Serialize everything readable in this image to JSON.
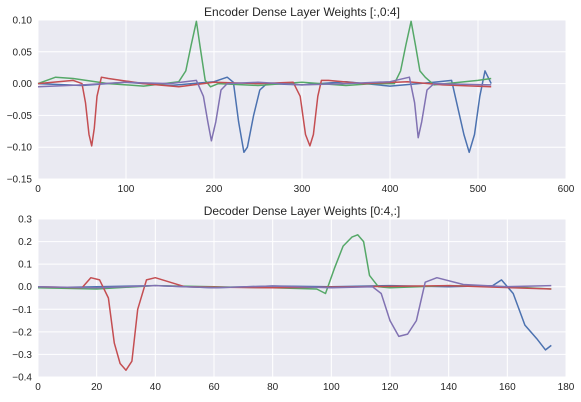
{
  "chart_data": [
    {
      "type": "line",
      "title": "Encoder Dense Layer Weights [:,0:4]",
      "xlabel": "",
      "ylabel": "",
      "xlim": [
        0,
        600
      ],
      "ylim": [
        -0.15,
        0.1
      ],
      "xticks": [
        0,
        100,
        200,
        300,
        400,
        500,
        600
      ],
      "yticks": [
        0.1,
        0.05,
        0.0,
        -0.05,
        -0.1,
        -0.15
      ],
      "xtick_labels": [
        "0",
        "100",
        "200",
        "300",
        "400",
        "500",
        "600"
      ],
      "ytick_labels": [
        "0.10",
        "0.05",
        "0.00",
        "−0.05",
        "−0.10",
        "−0.15"
      ],
      "grid": true,
      "series": [
        {
          "color": "#4c72b0",
          "x": [
            0,
            50,
            100,
            150,
            200,
            215,
            222,
            228,
            234,
            238,
            245,
            252,
            260,
            300,
            350,
            400,
            450,
            470,
            484,
            490,
            496,
            502,
            508,
            515
          ],
          "y": [
            0,
            -0.003,
            0.002,
            -0.003,
            0.003,
            0.01,
            0.002,
            -0.06,
            -0.108,
            -0.1,
            -0.05,
            -0.01,
            0,
            -0.002,
            0.003,
            -0.004,
            0.002,
            0.005,
            -0.08,
            -0.108,
            -0.08,
            -0.02,
            0.02,
            0
          ]
        },
        {
          "color": "#55a868",
          "x": [
            0,
            20,
            40,
            80,
            120,
            160,
            168,
            174,
            180,
            184,
            190,
            196,
            205,
            250,
            300,
            350,
            380,
            405,
            412,
            418,
            424,
            429,
            434,
            440,
            450,
            500,
            515
          ],
          "y": [
            0,
            0.01,
            0.008,
            0,
            -0.004,
            0.003,
            0.02,
            0.06,
            0.098,
            0.06,
            0.005,
            -0.005,
            0,
            -0.003,
            0.002,
            -0.003,
            0,
            0,
            0.02,
            0.06,
            0.098,
            0.06,
            0.02,
            0.01,
            -0.002,
            0.005,
            0.008
          ]
        },
        {
          "color": "#c44e52",
          "x": [
            0,
            40,
            50,
            54,
            58,
            61,
            64,
            67,
            72,
            80,
            120,
            160,
            200,
            250,
            290,
            298,
            304,
            309,
            313,
            318,
            322,
            330,
            370,
            420,
            460,
            515
          ],
          "y": [
            0,
            0.005,
            0,
            -0.03,
            -0.08,
            -0.098,
            -0.07,
            -0.02,
            0.01,
            0.008,
            0,
            -0.005,
            0.002,
            0,
            0.002,
            -0.02,
            -0.08,
            -0.098,
            -0.08,
            -0.02,
            0.005,
            0.005,
            0,
            0.003,
            -0.002,
            -0.005
          ]
        },
        {
          "color": "#8172b2",
          "x": [
            0,
            50,
            100,
            150,
            180,
            188,
            193,
            197,
            202,
            208,
            215,
            250,
            300,
            350,
            400,
            422,
            428,
            432,
            436,
            442,
            450,
            515
          ],
          "y": [
            -0.005,
            -0.002,
            0.002,
            0,
            0.005,
            -0.02,
            -0.06,
            -0.09,
            -0.06,
            -0.01,
            0,
            0.002,
            -0.002,
            0,
            0.003,
            0.01,
            -0.03,
            -0.085,
            -0.06,
            -0.01,
            0,
            -0.002
          ]
        }
      ]
    },
    {
      "type": "line",
      "title": "Decoder Dense Layer Weights [0:4,:]",
      "xlabel": "",
      "ylabel": "",
      "xlim": [
        0,
        180
      ],
      "ylim": [
        -0.4,
        0.3
      ],
      "xticks": [
        0,
        20,
        40,
        60,
        80,
        100,
        120,
        140,
        160,
        180
      ],
      "yticks": [
        0.3,
        0.2,
        0.1,
        0.0,
        -0.1,
        -0.2,
        -0.3,
        -0.4
      ],
      "xtick_labels": [
        "0",
        "20",
        "40",
        "60",
        "80",
        "100",
        "120",
        "140",
        "160",
        "180"
      ],
      "ytick_labels": [
        "0.3",
        "0.2",
        "0.1",
        "0.0",
        "−0.1",
        "−0.2",
        "−0.3",
        "−0.4"
      ],
      "grid": true,
      "series": [
        {
          "color": "#4c72b0",
          "x": [
            0,
            20,
            40,
            60,
            80,
            100,
            120,
            140,
            155,
            158,
            162,
            166,
            170,
            173,
            175
          ],
          "y": [
            -0.005,
            0,
            0.005,
            -0.005,
            0.003,
            0,
            0.005,
            0,
            0.005,
            0.03,
            -0.03,
            -0.17,
            -0.23,
            -0.28,
            -0.26
          ]
        },
        {
          "color": "#55a868",
          "x": [
            0,
            20,
            40,
            60,
            80,
            95,
            98,
            101,
            104,
            107,
            109,
            111,
            113,
            116,
            120,
            140,
            160,
            175
          ],
          "y": [
            -0.005,
            -0.01,
            0.005,
            0,
            -0.005,
            -0.01,
            -0.03,
            0.08,
            0.18,
            0.22,
            0.23,
            0.2,
            0.05,
            0,
            -0.005,
            0.005,
            0,
            -0.01
          ]
        },
        {
          "color": "#c44e52",
          "x": [
            0,
            15,
            18,
            21,
            24,
            26,
            28,
            30,
            32,
            34,
            37,
            40,
            50,
            80,
            110,
            140,
            175
          ],
          "y": [
            0,
            -0.005,
            0.04,
            0.03,
            -0.05,
            -0.25,
            -0.34,
            -0.37,
            -0.33,
            -0.1,
            0.03,
            0.04,
            0,
            -0.005,
            0,
            0.005,
            -0.01
          ]
        },
        {
          "color": "#8172b2",
          "x": [
            0,
            20,
            40,
            60,
            80,
            100,
            114,
            117,
            120,
            123,
            126,
            129,
            132,
            136,
            145,
            160,
            175
          ],
          "y": [
            0,
            -0.005,
            0.005,
            -0.005,
            0.003,
            -0.005,
            0,
            -0.03,
            -0.15,
            -0.22,
            -0.21,
            -0.15,
            0.02,
            0.04,
            0.01,
            0,
            0.005
          ]
        }
      ]
    }
  ]
}
